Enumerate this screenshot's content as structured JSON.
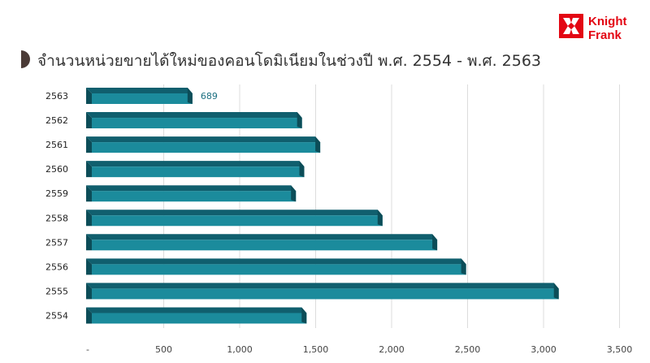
{
  "title": "จำนวนหน่วยขายได้ใหม่ของคอนโดมิเนียมในช่วงปี พ.ศ. 2554 - พ.ศ. 2563",
  "logo": {
    "line1": "Knight",
    "line2": "Frank",
    "color": "#e30613"
  },
  "colors": {
    "bar_face": "#1b8b9c",
    "bar_top": "#105f6e",
    "bar_end": "#0c4d58",
    "label": "#1b6f80"
  },
  "chart_data": {
    "type": "bar",
    "orientation": "horizontal",
    "categories": [
      "2563",
      "2562",
      "2561",
      "2560",
      "2559",
      "2558",
      "2557",
      "2556",
      "2555",
      "2554"
    ],
    "values": [
      689,
      1410,
      1530,
      1425,
      1370,
      1940,
      2300,
      2490,
      3100,
      1440
    ],
    "data_labels": [
      {
        "category": "2563",
        "text": "689"
      }
    ],
    "x_ticks": [
      "-",
      "500",
      "1,000",
      "1,500",
      "2,000",
      "2,500",
      "3,000",
      "3,500"
    ],
    "x_tick_values": [
      0,
      500,
      1000,
      1500,
      2000,
      2500,
      3000,
      3500
    ],
    "xlim": [
      0,
      3500
    ],
    "grid": "vertical"
  }
}
